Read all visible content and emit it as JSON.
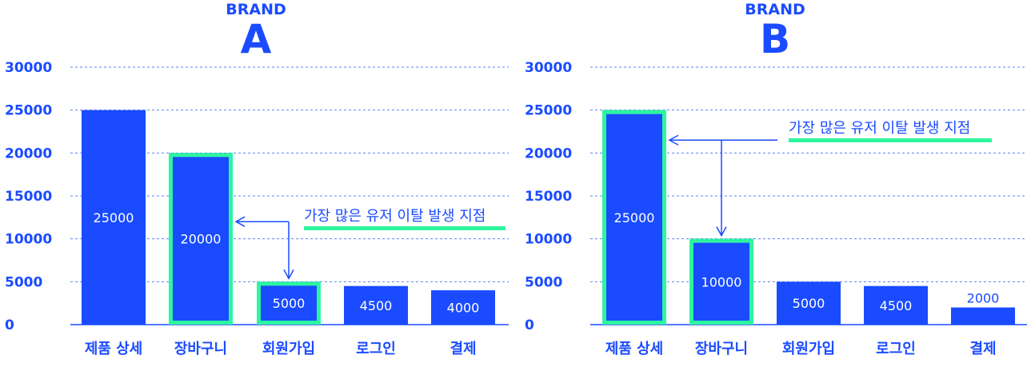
{
  "colors": {
    "bar": "#1a4bff",
    "highlight": "#2ef5a0",
    "grid": "#1a4bff",
    "text": "#1a4bff"
  },
  "chart_data": [
    {
      "type": "bar",
      "title_small": "BRAND",
      "title_big": "A",
      "categories": [
        "제품 상세",
        "장바구니",
        "회원가입",
        "로그인",
        "결제"
      ],
      "values": [
        25000,
        20000,
        5000,
        4500,
        4000
      ],
      "highlighted": [
        1,
        2
      ],
      "yticks": [
        0,
        5000,
        10000,
        15000,
        20000,
        25000,
        30000
      ],
      "ylim": [
        0,
        30000
      ],
      "grid": true,
      "annotation": {
        "text": "가장 많은 유저 이탈 발생 지점",
        "from_category": 1,
        "to_category": 2
      }
    },
    {
      "type": "bar",
      "title_small": "BRAND",
      "title_big": "B",
      "categories": [
        "제품 상세",
        "장바구니",
        "회원가입",
        "로그인",
        "결제"
      ],
      "values": [
        25000,
        10000,
        5000,
        4500,
        2000
      ],
      "highlighted": [
        0,
        1
      ],
      "yticks": [
        0,
        5000,
        10000,
        15000,
        20000,
        25000,
        30000
      ],
      "ylim": [
        0,
        30000
      ],
      "grid": true,
      "annotation": {
        "text": "가장 많은 유저 이탈 발생 지점",
        "from_category": 0,
        "to_category": 1
      }
    }
  ]
}
